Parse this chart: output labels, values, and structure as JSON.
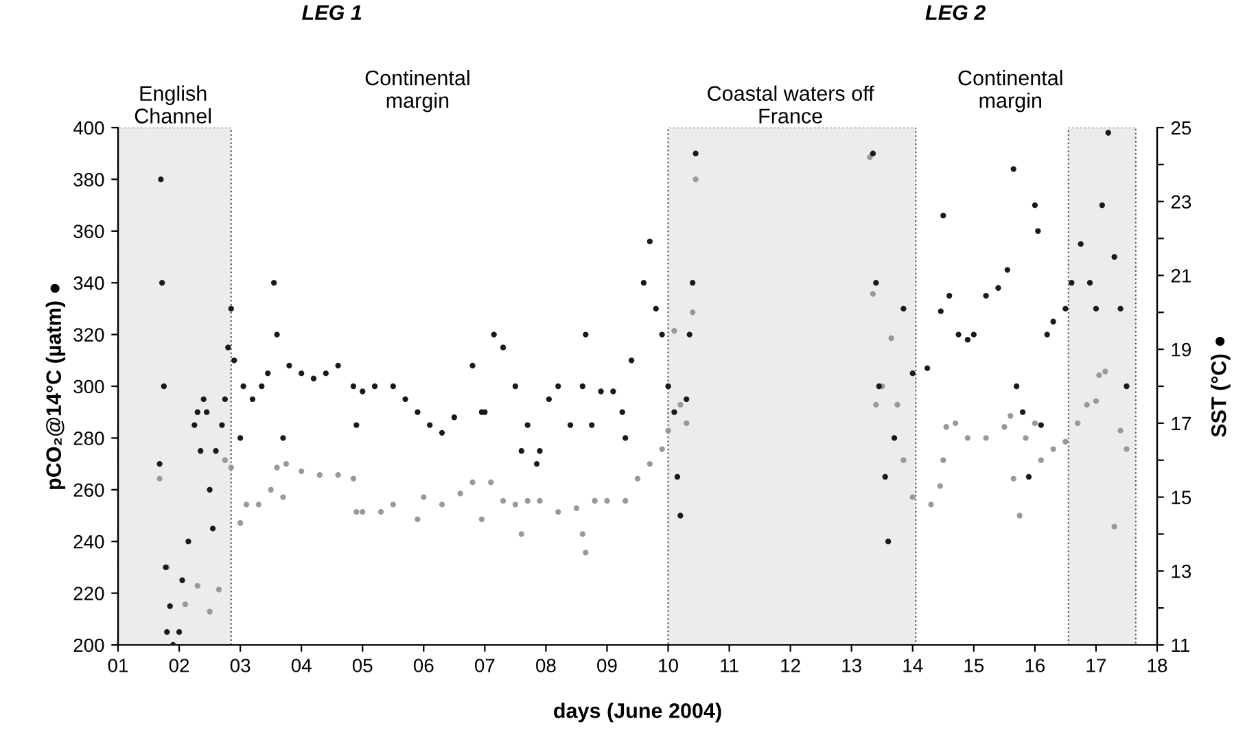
{
  "chart_data": {
    "type": "scatter",
    "xlabel": "days (June 2004)",
    "ylabel": "pCO₂@14°C (µatm) ●",
    "y2label": "SST (°C) ●",
    "annotations": [
      "LEG 1",
      "LEG 2",
      "English\nChannel",
      "Continental\nmargin",
      "Coastal waters off\nFrance",
      "Continental\nmargin"
    ],
    "xlim": [
      1,
      18
    ],
    "xticks": [
      {
        "value": 1,
        "label": "01"
      },
      {
        "value": 2,
        "label": "02"
      },
      {
        "value": 3,
        "label": "03"
      },
      {
        "value": 4,
        "label": "04"
      },
      {
        "value": 5,
        "label": "05"
      },
      {
        "value": 6,
        "label": "06"
      },
      {
        "value": 7,
        "label": "07"
      },
      {
        "value": 8,
        "label": "08"
      },
      {
        "value": 9,
        "label": "09"
      },
      10,
      11,
      12,
      13,
      14,
      15,
      16,
      17,
      18
    ],
    "ylim": [
      200,
      400
    ],
    "yticks": [
      200,
      220,
      240,
      260,
      280,
      300,
      320,
      340,
      360,
      380,
      400
    ],
    "y2lim": [
      11,
      25
    ],
    "y2ticks": [
      11,
      {
        "value": 12,
        "label": null
      },
      13,
      {
        "value": 14,
        "label": null
      },
      15,
      {
        "value": 16,
        "label": null
      },
      17,
      {
        "value": 18,
        "label": null
      },
      19,
      {
        "value": 20,
        "label": null
      },
      21,
      {
        "value": 22,
        "label": null
      },
      23,
      {
        "value": 24,
        "label": null
      },
      25
    ],
    "marker": "circle",
    "grid": false,
    "legend": false,
    "bands": [
      {
        "axis": "x",
        "from": 1,
        "to": 2.85,
        "color": "#ececec"
      },
      {
        "axis": "x",
        "from": 10,
        "to": 14.05,
        "color": "#ececec"
      },
      {
        "axis": "x",
        "from": 16.55,
        "to": 17.65,
        "color": "#ececec"
      }
    ],
    "series": [
      {
        "color": "#1a1a1a",
        "x": [
          1.68,
          1.7,
          1.72,
          1.75,
          1.78,
          1.8,
          1.85,
          1.9,
          2.0,
          2.05,
          2.15,
          2.25,
          2.3,
          2.35,
          2.4,
          2.45,
          2.5,
          2.55,
          2.6,
          2.7,
          2.75,
          2.8,
          2.85,
          2.9,
          3.0,
          3.05,
          3.2,
          3.35,
          3.45,
          3.55,
          3.6,
          3.7,
          3.8,
          4.0,
          4.2,
          4.4,
          4.6,
          4.85,
          4.9,
          5.0,
          5.2,
          5.5,
          5.7,
          5.9,
          6.1,
          6.3,
          6.5,
          6.8,
          6.95,
          7.0,
          7.15,
          7.3,
          7.5,
          7.6,
          7.7,
          7.85,
          7.9,
          8.05,
          8.2,
          8.4,
          8.6,
          8.65,
          8.75,
          8.9,
          9.1,
          9.25,
          9.3,
          9.4,
          9.6,
          9.7,
          9.8,
          9.9,
          10.0,
          10.1,
          10.15,
          10.2,
          10.3,
          10.35,
          10.4,
          10.45,
          13.35,
          13.4,
          13.45,
          13.55,
          13.6,
          13.7,
          13.85,
          14.0,
          14.24,
          14.46,
          14.5,
          14.6,
          14.75,
          14.9,
          15.0,
          15.2,
          15.4,
          15.55,
          15.65,
          15.7,
          15.8,
          15.9,
          16.0,
          16.05,
          16.1,
          16.2,
          16.3,
          16.5,
          16.6,
          16.75,
          16.9,
          17.0,
          17.1,
          17.2,
          17.3,
          17.4,
          17.5
        ],
        "values": [
          270,
          380,
          340,
          300,
          230,
          205,
          215,
          200,
          205,
          225,
          240,
          285,
          290,
          275,
          295,
          290,
          260,
          245,
          275,
          285,
          295,
          315,
          330,
          310,
          280,
          300,
          295,
          300,
          305,
          340,
          320,
          280,
          308,
          305,
          303,
          305,
          308,
          300,
          285,
          298,
          300,
          300,
          295,
          290,
          285,
          282,
          288,
          308,
          290,
          290,
          320,
          315,
          300,
          275,
          285,
          270,
          275,
          295,
          300,
          285,
          300,
          320,
          285,
          298,
          298,
          290,
          280,
          310,
          340,
          356,
          330,
          320,
          300,
          290,
          265,
          250,
          295,
          320,
          340,
          390,
          390,
          340,
          300,
          265,
          240,
          280,
          330,
          305,
          307,
          329,
          366,
          335,
          320,
          318,
          320,
          335,
          338,
          345,
          384,
          300,
          290,
          265,
          370,
          360,
          285,
          320,
          325,
          330,
          340,
          355,
          340,
          330,
          370,
          398,
          350,
          330,
          300
        ]
      },
      {
        "axis": "y2",
        "color": "#999999",
        "x": [
          1.68,
          1.8,
          2.1,
          2.3,
          2.5,
          2.65,
          2.75,
          2.85,
          3.0,
          3.1,
          3.3,
          3.5,
          3.6,
          3.7,
          3.75,
          4.0,
          4.3,
          4.6,
          4.85,
          4.9,
          5.0,
          5.3,
          5.5,
          5.9,
          6.0,
          6.3,
          6.6,
          6.8,
          6.95,
          7.1,
          7.3,
          7.5,
          7.6,
          7.7,
          7.9,
          8.2,
          8.5,
          8.6,
          8.65,
          8.8,
          9.0,
          9.3,
          9.5,
          9.7,
          9.9,
          10.0,
          10.1,
          10.2,
          10.3,
          10.4,
          10.45,
          13.3,
          13.35,
          13.4,
          13.5,
          13.65,
          13.75,
          13.85,
          14.0,
          14.3,
          14.45,
          14.5,
          14.55,
          14.7,
          14.9,
          15.2,
          15.5,
          15.6,
          15.65,
          15.75,
          15.85,
          16.0,
          16.1,
          16.3,
          16.5,
          16.7,
          16.85,
          17.0,
          17.05,
          17.15,
          17.3,
          17.4,
          17.5
        ],
        "values": [
          15.5,
          13.1,
          12.1,
          12.6,
          11.9,
          12.5,
          16.0,
          15.8,
          14.3,
          14.8,
          14.8,
          15.2,
          15.8,
          15.0,
          15.9,
          15.7,
          15.6,
          15.6,
          15.5,
          14.6,
          14.6,
          14.6,
          14.8,
          14.4,
          15.0,
          14.8,
          15.1,
          15.4,
          14.4,
          15.4,
          14.9,
          14.8,
          14.0,
          14.9,
          14.9,
          14.6,
          14.7,
          14.0,
          13.5,
          14.9,
          14.9,
          14.9,
          15.5,
          15.9,
          16.3,
          16.8,
          19.5,
          17.5,
          17.0,
          20.0,
          23.6,
          24.2,
          20.5,
          17.5,
          18.0,
          19.3,
          17.5,
          16.0,
          15.0,
          14.8,
          15.3,
          16.0,
          16.9,
          17.0,
          16.6,
          16.6,
          16.9,
          17.2,
          15.5,
          14.5,
          16.6,
          17.0,
          16.0,
          16.3,
          16.5,
          17.0,
          17.5,
          17.6,
          18.3,
          18.4,
          14.2,
          16.8,
          16.3
        ]
      }
    ]
  }
}
